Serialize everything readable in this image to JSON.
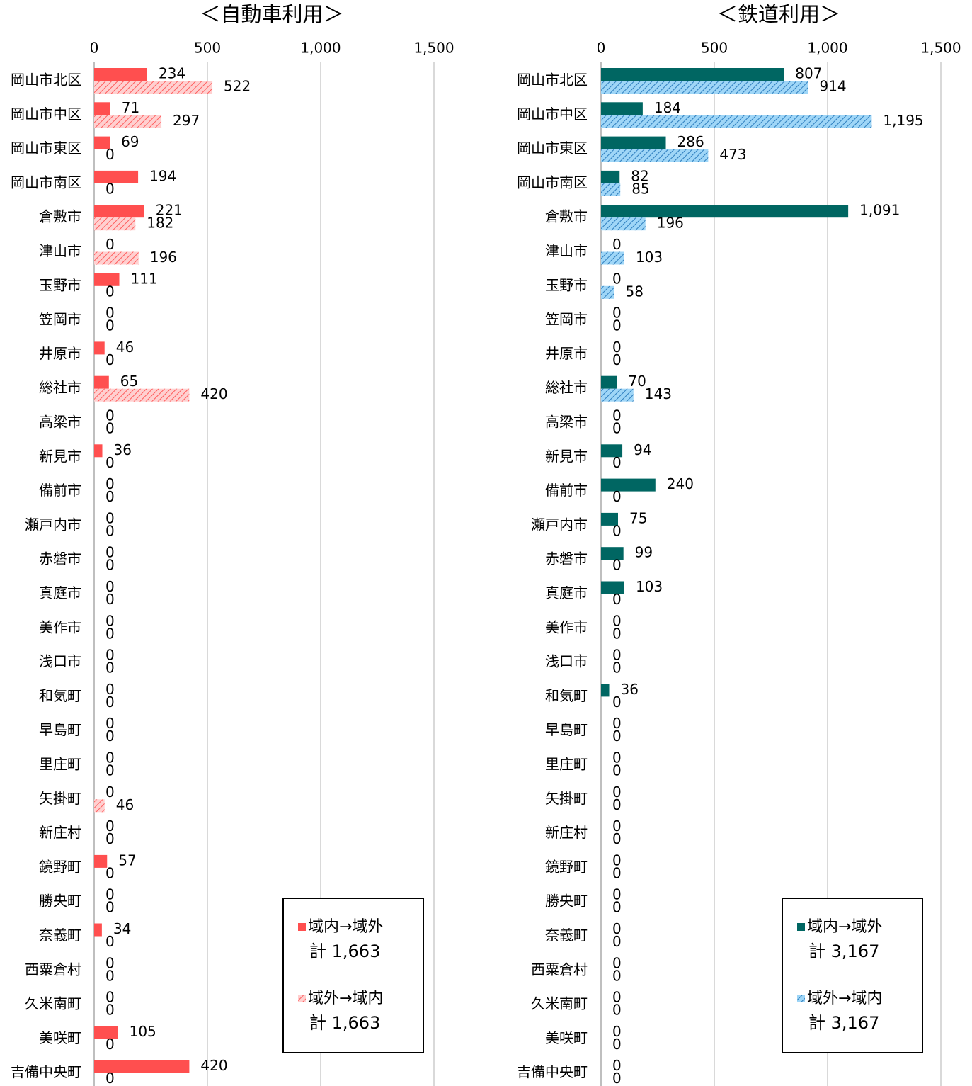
{
  "chart_data": [
    {
      "type": "bar",
      "orientation": "horizontal",
      "title": "＜自動車利用＞",
      "categories": [
        "岡山市北区",
        "岡山市中区",
        "岡山市東区",
        "岡山市南区",
        "倉敷市",
        "津山市",
        "玉野市",
        "笠岡市",
        "井原市",
        "総社市",
        "高梁市",
        "新見市",
        "備前市",
        "瀬戸内市",
        "赤磐市",
        "真庭市",
        "美作市",
        "浅口市",
        "和気町",
        "早島町",
        "里庄町",
        "矢掛町",
        "新庄村",
        "鏡野町",
        "勝央町",
        "奈義町",
        "西粟倉村",
        "久米南町",
        "美咲町",
        "吉備中央町"
      ],
      "series": [
        {
          "name": "域内→域外",
          "color": "#ff4f4f",
          "hatch": false,
          "legend_total": "計 1,663",
          "values": [
            234,
            71,
            69,
            194,
            221,
            0,
            111,
            0,
            46,
            65,
            0,
            36,
            0,
            0,
            0,
            0,
            0,
            0,
            0,
            0,
            0,
            0,
            0,
            57,
            0,
            34,
            0,
            0,
            105,
            420
          ]
        },
        {
          "name": "域外→域内",
          "color": "#ff5c5c",
          "hatch": true,
          "legend_total": "計 1,663",
          "values": [
            522,
            297,
            0,
            0,
            182,
            196,
            0,
            0,
            0,
            420,
            0,
            0,
            0,
            0,
            0,
            0,
            0,
            0,
            0,
            0,
            0,
            46,
            0,
            0,
            0,
            0,
            0,
            0,
            0,
            0
          ]
        }
      ],
      "xlim": [
        0,
        1600
      ],
      "xticks": [
        0,
        500,
        {
          "value": 1000,
          "label": "1,000"
        },
        {
          "value": 1500,
          "label": "1,500"
        }
      ],
      "grid": true
    },
    {
      "type": "bar",
      "orientation": "horizontal",
      "title": "＜鉄道利用＞",
      "categories": [
        "岡山市北区",
        "岡山市中区",
        "岡山市東区",
        "岡山市南区",
        "倉敷市",
        "津山市",
        "玉野市",
        "笠岡市",
        "井原市",
        "総社市",
        "高梁市",
        "新見市",
        "備前市",
        "瀬戸内市",
        "赤磐市",
        "真庭市",
        "美作市",
        "浅口市",
        "和気町",
        "早島町",
        "里庄町",
        "矢掛町",
        "新庄村",
        "鏡野町",
        "勝央町",
        "奈義町",
        "西粟倉村",
        "久米南町",
        "美咲町",
        "吉備中央町"
      ],
      "series": [
        {
          "name": "域内→域外",
          "color": "#006662",
          "hatch": false,
          "legend_total": "計 3,167",
          "values": [
            807,
            184,
            286,
            82,
            1091,
            0,
            0,
            0,
            0,
            70,
            0,
            94,
            240,
            75,
            99,
            103,
            0,
            0,
            36,
            0,
            0,
            0,
            0,
            0,
            0,
            0,
            0,
            0,
            0,
            0
          ],
          "value_labels": [
            "807",
            "184",
            "286",
            "82",
            "1,091",
            "0",
            "0",
            "0",
            "0",
            "70",
            "0",
            "94",
            "240",
            "75",
            "99",
            "103",
            "0",
            "0",
            "36",
            "0",
            "0",
            "0",
            "0",
            "0",
            "0",
            "0",
            "0",
            "0",
            "0",
            "0"
          ]
        },
        {
          "name": "域外→域内",
          "color": "#2f7fbf",
          "hatch": true,
          "legend_total": "計 3,167",
          "values": [
            914,
            1195,
            473,
            85,
            196,
            103,
            58,
            0,
            0,
            143,
            0,
            0,
            0,
            0,
            0,
            0,
            0,
            0,
            0,
            0,
            0,
            0,
            0,
            0,
            0,
            0,
            0,
            0,
            0,
            0
          ],
          "value_labels": [
            "914",
            "1,195",
            "473",
            "85",
            "196",
            "103",
            "58",
            "0",
            "0",
            "143",
            "0",
            "0",
            "0",
            "0",
            "0",
            "0",
            "0",
            "0",
            "0",
            "0",
            "0",
            "0",
            "0",
            "0",
            "0",
            "0",
            "0",
            "0",
            "0",
            "0"
          ]
        }
      ],
      "xlim": [
        0,
        1600
      ],
      "xticks": [
        0,
        500,
        {
          "value": 1000,
          "label": "1,000"
        },
        {
          "value": 1500,
          "label": "1,500"
        }
      ],
      "grid": true
    }
  ]
}
